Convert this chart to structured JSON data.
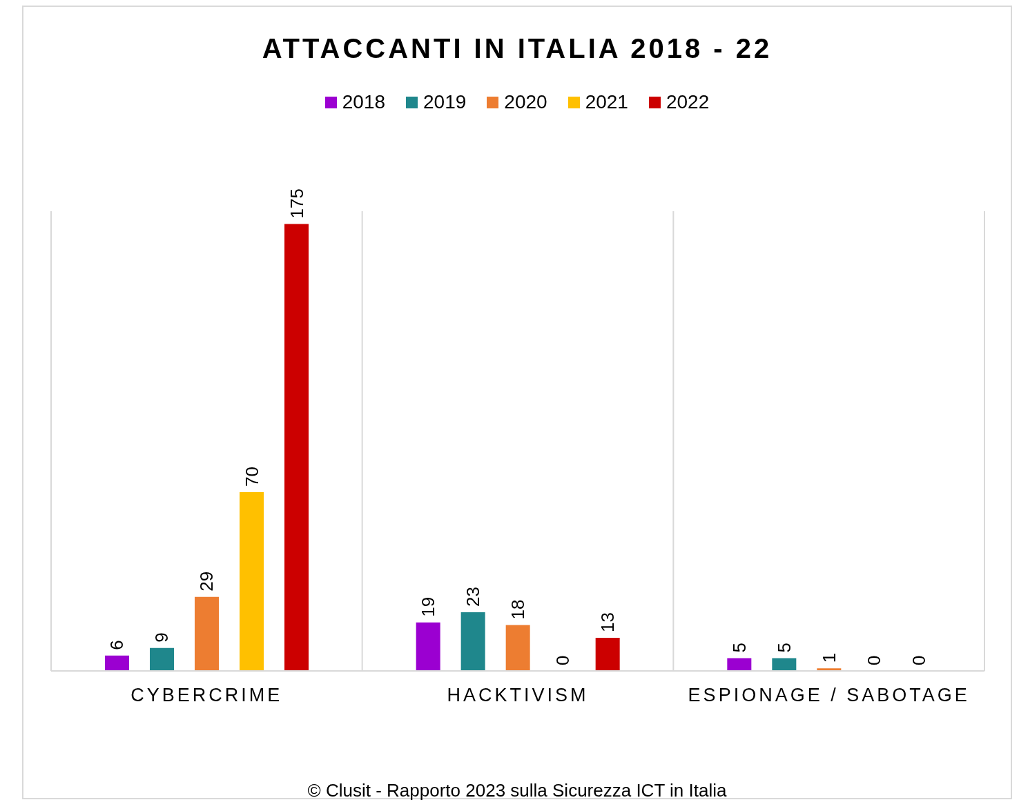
{
  "chart_data": {
    "type": "bar",
    "title": "ATTACCANTI IN ITALIA 2018 - 22",
    "categories": [
      "CYBERCRIME",
      "HACKTIVISM",
      "ESPIONAGE / SABOTAGE"
    ],
    "series": [
      {
        "name": "2018",
        "color": "#9b00d1",
        "values": [
          6,
          19,
          5
        ]
      },
      {
        "name": "2019",
        "color": "#1f878c",
        "values": [
          9,
          23,
          5
        ]
      },
      {
        "name": "2020",
        "color": "#ed7d31",
        "values": [
          29,
          18,
          1
        ]
      },
      {
        "name": "2021",
        "color": "#ffc000",
        "values": [
          70,
          0,
          0
        ]
      },
      {
        "name": "2022",
        "color": "#cc0000",
        "values": [
          175,
          13,
          0
        ]
      }
    ],
    "data_labels": true,
    "grid": "x",
    "legend": "top",
    "annotations": [
      "© Clusit - Rapporto 2023 sulla Sicurezza ICT in Italia"
    ]
  }
}
